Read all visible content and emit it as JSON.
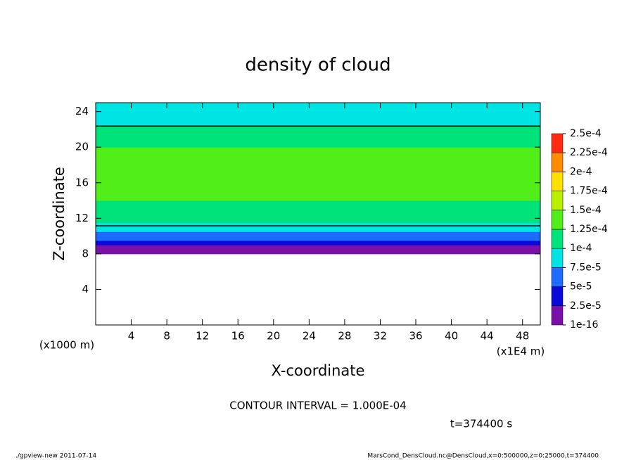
{
  "chart_data": {
    "type": "heatmap",
    "title": "density of cloud",
    "x_label": "X-coordinate",
    "y_label": "Z-coordinate",
    "x_unit": "(x1E4 m)",
    "y_unit": "(x1000 m)",
    "annotations": [
      "CONTOUR INTERVAL = 1.000E-04",
      "t=374400 s",
      "./gpview-new  2011-07-14",
      "MarsCond_DensCloud.nc@DensCloud,x=0:500000,z=0:25000,t=374400"
    ],
    "xlim": [
      0,
      50
    ],
    "xticks": [
      4,
      8,
      12,
      16,
      20,
      24,
      28,
      32,
      36,
      40,
      44,
      48
    ],
    "ylim": [
      0,
      25
    ],
    "yticks": [
      4,
      8,
      12,
      16,
      20,
      24
    ],
    "z": [
      8,
      8.5,
      9,
      9.5,
      10,
      10.5,
      11,
      11.5,
      12,
      13,
      14,
      15,
      16,
      17,
      18,
      19,
      20,
      21,
      22,
      22.5,
      23,
      24
    ],
    "values": [
      1e-05,
      2e-05,
      3.5e-05,
      6e-05,
      7e-05,
      8e-05,
      9.8e-05,
      0.000105,
      0.00011,
      0.00012,
      0.000125,
      0.00013,
      0.00013,
      0.00013,
      0.000128,
      0.000125,
      0.00012,
      0.000112,
      0.000105,
      9.8e-05,
      9.2e-05,
      8.5e-05
    ],
    "contour_levels": [
      {
        "value": 0.0001,
        "label": "1.000E-04"
      }
    ],
    "colorbar_ticks": [
      1e-16,
      {
        "value": 2.5e-05,
        "label": "2.5e-5"
      },
      {
        "value": 5e-05,
        "label": "5e-5"
      },
      {
        "value": 7.5e-05,
        "label": "7.5e-5"
      },
      {
        "value": 0.0001,
        "label": "1e-4"
      },
      {
        "value": 0.000125,
        "label": "1.25e-4"
      },
      {
        "value": 0.00015,
        "label": "1.5e-4"
      },
      {
        "value": 0.000175,
        "label": "1.75e-4"
      },
      {
        "value": 0.0002,
        "label": "2e-4"
      },
      {
        "value": 0.000225,
        "label": "2.25e-4"
      },
      {
        "value": 0.00025,
        "label": "2.5e-4"
      }
    ],
    "colors": [
      "#7a10a8",
      "#0a0ad8",
      "#1e6cff",
      "#00e4e4",
      "#00e27a",
      "#52ee1a",
      "#b8f000",
      "#ffe000",
      "#ff8c00",
      "#ff2a10"
    ]
  }
}
